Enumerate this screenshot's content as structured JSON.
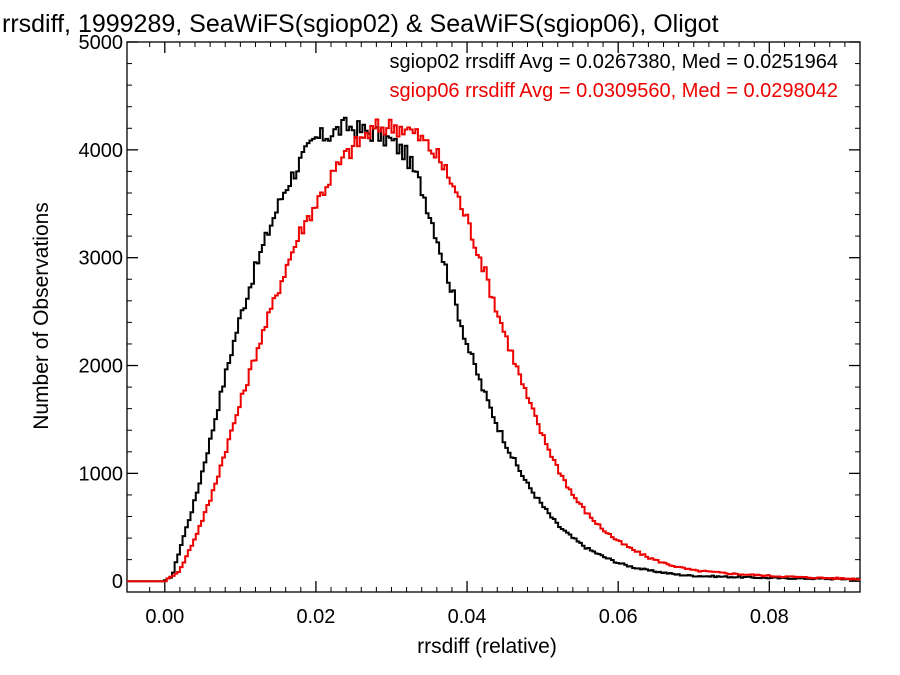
{
  "chart_data": {
    "type": "histogram",
    "title": "rrsdiff, 1999289, SeaWiFS(sgiop02) & SeaWiFS(sgiop06), Oligot",
    "xlabel": "rrsdiff (relative)",
    "ylabel": "Number of Observations",
    "xlim": [
      -0.005,
      0.092
    ],
    "ylim": [
      -100,
      5000
    ],
    "xticks": [
      0.0,
      0.02,
      0.04,
      0.06,
      0.08
    ],
    "xtick_labels": [
      "0.00",
      "0.02",
      "0.04",
      "0.06",
      "0.08"
    ],
    "yticks": [
      0,
      1000,
      2000,
      3000,
      4000,
      5000
    ],
    "ytick_labels": [
      "0",
      "1000",
      "2000",
      "3000",
      "4000",
      "5000"
    ],
    "annotations": [
      {
        "text": "sgiop02 rrsdiff Avg = 0.0267380, Med = 0.0251964",
        "color": "#000000"
      },
      {
        "text": "sgiop06 rrsdiff Avg = 0.0309560, Med = 0.0298042",
        "color": "#ee0000"
      }
    ],
    "series": [
      {
        "label": "sgiop02",
        "color": "#000000",
        "x": [
          -0.004,
          0.0,
          0.001,
          0.002,
          0.004,
          0.006,
          0.008,
          0.01,
          0.012,
          0.014,
          0.016,
          0.018,
          0.02,
          0.022,
          0.024,
          0.026,
          0.028,
          0.03,
          0.032,
          0.034,
          0.036,
          0.038,
          0.04,
          0.042,
          0.044,
          0.046,
          0.048,
          0.05,
          0.052,
          0.054,
          0.056,
          0.058,
          0.06,
          0.062,
          0.064,
          0.066,
          0.068,
          0.07,
          0.075,
          0.08,
          0.085,
          0.09,
          0.092
        ],
        "values": [
          0,
          0,
          50,
          300,
          750,
          1300,
          1900,
          2450,
          2900,
          3300,
          3650,
          3900,
          4100,
          4150,
          4220,
          4180,
          4150,
          4080,
          3950,
          3650,
          3200,
          2700,
          2200,
          1800,
          1450,
          1150,
          900,
          700,
          520,
          400,
          300,
          230,
          170,
          130,
          100,
          80,
          60,
          50,
          40,
          30,
          25,
          20,
          20
        ]
      },
      {
        "label": "sgiop06",
        "color": "#ee0000",
        "x": [
          -0.004,
          0.0,
          0.002,
          0.004,
          0.006,
          0.008,
          0.01,
          0.012,
          0.014,
          0.016,
          0.018,
          0.02,
          0.022,
          0.024,
          0.026,
          0.028,
          0.03,
          0.032,
          0.034,
          0.036,
          0.038,
          0.04,
          0.042,
          0.044,
          0.046,
          0.048,
          0.05,
          0.052,
          0.054,
          0.056,
          0.058,
          0.06,
          0.062,
          0.064,
          0.066,
          0.068,
          0.07,
          0.075,
          0.08,
          0.085,
          0.09,
          0.092
        ],
        "values": [
          0,
          0,
          100,
          400,
          750,
          1200,
          1650,
          2100,
          2500,
          2900,
          3250,
          3500,
          3750,
          3950,
          4100,
          4200,
          4220,
          4200,
          4100,
          3950,
          3700,
          3350,
          2950,
          2500,
          2100,
          1700,
          1350,
          1050,
          800,
          620,
          480,
          370,
          290,
          220,
          170,
          130,
          100,
          70,
          50,
          35,
          25,
          20
        ]
      }
    ]
  }
}
